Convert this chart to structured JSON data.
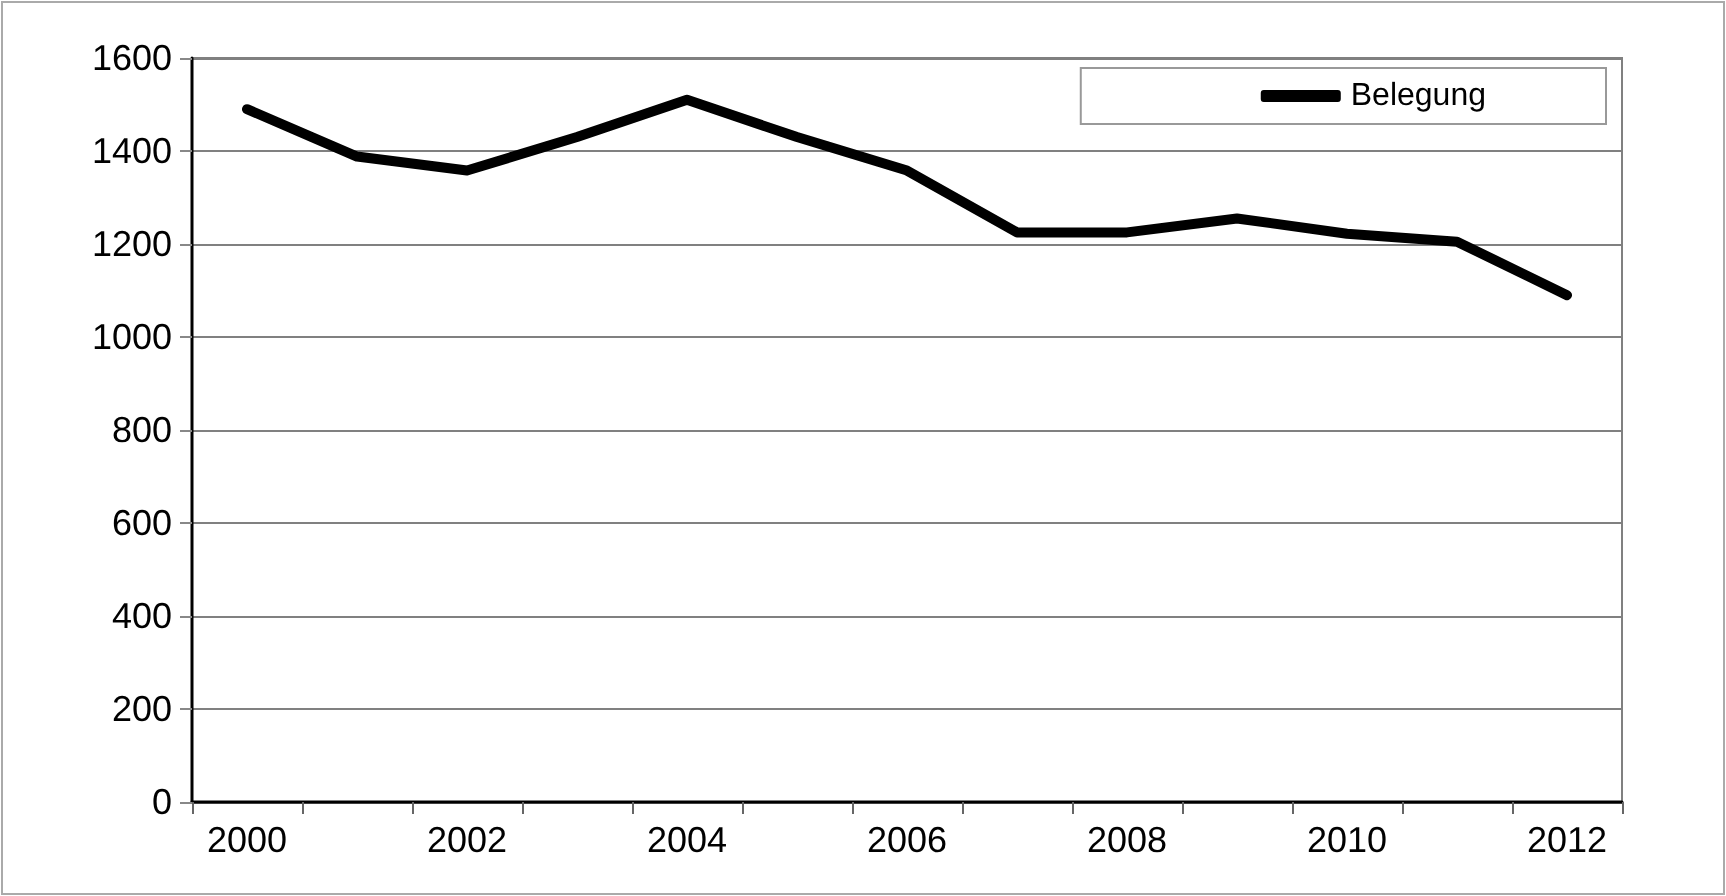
{
  "chart_data": {
    "type": "line",
    "categories": [
      "2000",
      null,
      "2002",
      null,
      "2004",
      null,
      "2006",
      null,
      "2008",
      null,
      "2010",
      null,
      "2012"
    ],
    "series": [
      {
        "name": "Belegung",
        "color": "#000000",
        "values": [
          1490,
          1388,
          1358,
          1430,
          1510,
          1430,
          1358,
          1225,
          1225,
          1255,
          1222,
          1205,
          1090
        ]
      }
    ],
    "ylim": [
      0,
      1600
    ],
    "yticks": [
      0,
      200,
      400,
      600,
      800,
      1000,
      1200,
      1400,
      1600
    ],
    "grid": "y",
    "legend": "top right",
    "marker": "none",
    "line_style": "solid"
  }
}
